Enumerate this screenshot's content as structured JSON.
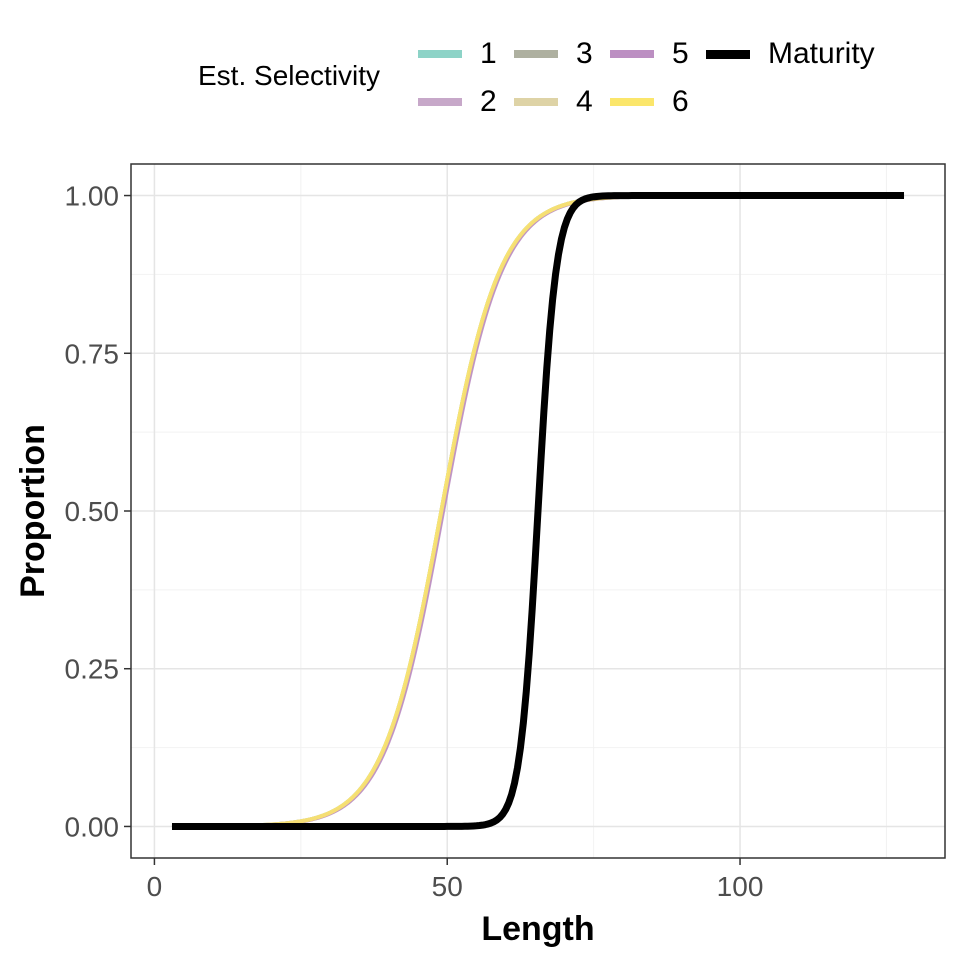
{
  "chart_data": {
    "type": "line",
    "title": "",
    "xlabel": "Length",
    "ylabel": "Proportion",
    "xlim": [
      -4,
      135
    ],
    "ylim": [
      -0.05,
      1.05
    ],
    "xticks": [
      0,
      50,
      100
    ],
    "xtick_labels": [
      "0",
      "50",
      "100"
    ],
    "yticks": [
      0,
      0.25,
      0.5,
      0.75,
      1.0
    ],
    "ytick_labels": [
      "0.00",
      "0.25",
      "0.50",
      "0.75",
      "1.00"
    ],
    "grid": true,
    "legend_position": "top",
    "legend_title": "Est. Selectivity",
    "x_range_plotted": [
      3,
      128
    ],
    "series": [
      {
        "name": "1",
        "color": "#8dd3c7",
        "type": "logistic",
        "x50": 49.0,
        "slope": 0.2
      },
      {
        "name": "2",
        "color": "#c7a8c9",
        "type": "logistic",
        "x50": 49.2,
        "slope": 0.2
      },
      {
        "name": "3",
        "color": "#aeb0a0",
        "type": "logistic",
        "x50": 49.0,
        "slope": 0.2
      },
      {
        "name": "4",
        "color": "#ded3a6",
        "type": "logistic",
        "x50": 49.0,
        "slope": 0.2
      },
      {
        "name": "5",
        "color": "#bc8fc2",
        "type": "logistic",
        "x50": 49.3,
        "slope": 0.2
      },
      {
        "name": "6",
        "color": "#fbe66b",
        "type": "logistic",
        "x50": 49.0,
        "slope": 0.2
      },
      {
        "name": "Maturity",
        "color": "#000000",
        "type": "logistic",
        "x50": 65.5,
        "slope": 0.65
      }
    ]
  }
}
